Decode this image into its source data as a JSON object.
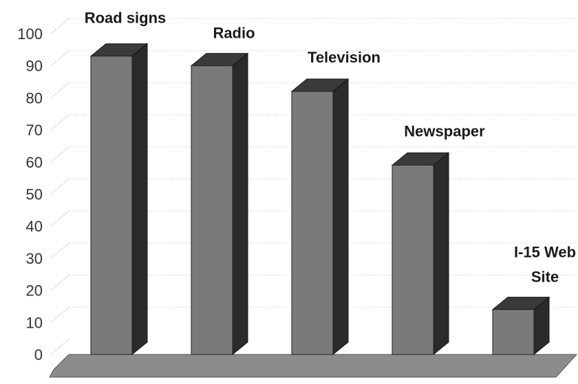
{
  "chart_data": {
    "type": "bar",
    "style": "3d-column",
    "categories": [
      "Road signs",
      "Radio",
      "Television",
      "Newspaper",
      "I-15 Web Site"
    ],
    "category_label_lines": [
      [
        "Road signs"
      ],
      [
        "Radio"
      ],
      [
        "Television"
      ],
      [
        "Newspaper"
      ],
      [
        "I-15 Web",
        "Site"
      ]
    ],
    "values": [
      93,
      90,
      82,
      59,
      14
    ],
    "ylim": [
      0,
      100
    ],
    "yticks": [
      "0",
      "10",
      "20",
      "30",
      "40",
      "50",
      "60",
      "70",
      "80",
      "90",
      "100"
    ],
    "grid": true,
    "legend": "none",
    "title": "",
    "xlabel": "",
    "ylabel": "",
    "colors": {
      "bar_front": "#7a7a7a",
      "bar_side": "#2b2b2b",
      "bar_top": "#3a3a3a",
      "floor": "#8c8c8c",
      "grid": "#c8c8c8"
    }
  }
}
